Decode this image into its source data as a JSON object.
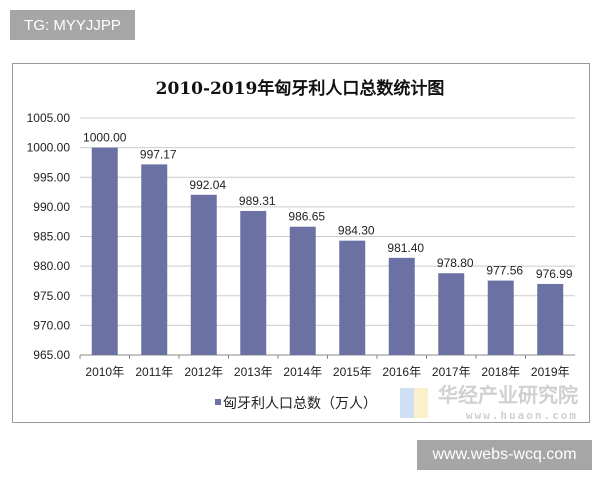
{
  "watermarks": {
    "top": "TG: MYYJJPP",
    "bottom": "www.webs-wcq.com",
    "logo_cn": "华经产业研究院",
    "logo_url": "www.huaon.com"
  },
  "colors": {
    "bar": "#6b72a3",
    "grid": "#d0d0d0",
    "label_bg": "#a6a6a6"
  },
  "chart_data": {
    "type": "bar",
    "title": "2010-2019年匈牙利人口总数统计图",
    "categories": [
      "2010年",
      "2011年",
      "2012年",
      "2013年",
      "2014年",
      "2015年",
      "2016年",
      "2017年",
      "2018年",
      "2019年"
    ],
    "series": [
      {
        "name": "匈牙利人口总数（万人）",
        "values": [
          1000.0,
          997.17,
          992.04,
          989.31,
          986.65,
          984.3,
          981.4,
          978.8,
          977.56,
          976.99
        ]
      }
    ],
    "data_labels": [
      "1000.00",
      "997.17",
      "992.04",
      "989.31",
      "986.65",
      "984.30",
      "981.40",
      "978.80",
      "977.56",
      "976.99"
    ],
    "ylim": [
      965,
      1005
    ],
    "yticks": [
      "965.00",
      "970.00",
      "975.00",
      "980.00",
      "985.00",
      "990.00",
      "995.00",
      "1000.00",
      "1005.00"
    ],
    "grid": true,
    "legend": "bottom",
    "xlabel": "",
    "ylabel": ""
  }
}
